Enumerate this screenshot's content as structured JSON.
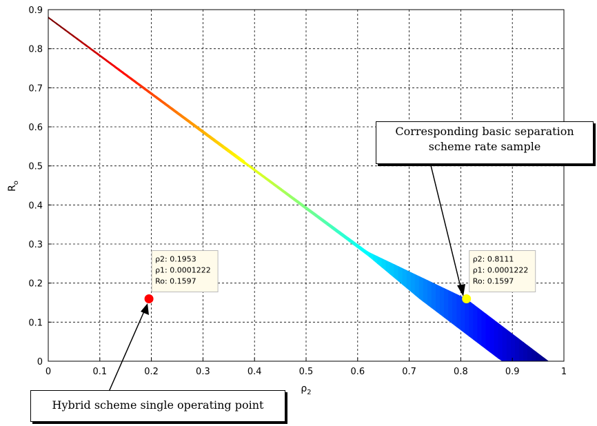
{
  "chart_data": {
    "type": "scatter",
    "xlabel": "ρ2",
    "ylabel": "Ro",
    "xlim": [
      0,
      1
    ],
    "ylim": [
      0,
      0.9
    ],
    "xticks": [
      "0",
      "0.1",
      "0.2",
      "0.3",
      "0.4",
      "0.5",
      "0.6",
      "0.7",
      "0.8",
      "0.9",
      "1"
    ],
    "yticks": [
      "0",
      "0.1",
      "0.2",
      "0.3",
      "0.4",
      "0.5",
      "0.6",
      "0.7",
      "0.8",
      "0.9"
    ],
    "grid": true,
    "region": {
      "description": "rate samples colored by ρ1",
      "upper_edge": [
        [
          0,
          0.88
        ],
        [
          0.62,
          0.28
        ],
        [
          0.81,
          0.16
        ],
        [
          0.97,
          0
        ]
      ],
      "lower_edge": [
        [
          0,
          0.88
        ],
        [
          0.62,
          0.27
        ],
        [
          0.72,
          0.16
        ],
        [
          0.88,
          0
        ]
      ],
      "colormap": "jet"
    },
    "points": [
      {
        "name": "hybrid",
        "x": 0.1953,
        "y": 0.1597,
        "color": "#ff0000"
      },
      {
        "name": "separation",
        "x": 0.8111,
        "y": 0.1597,
        "color": "#ffff00"
      }
    ],
    "datatips": [
      {
        "for": "hybrid",
        "l1": "ρ2: 0.1953",
        "l2": "ρ1: 0.0001222",
        "l3": "Ro: 0.1597"
      },
      {
        "for": "separation",
        "l1": "ρ2: 0.8111",
        "l2": "ρ1: 0.0001222",
        "l3": "Ro: 0.1597"
      }
    ]
  },
  "annotations": {
    "separation_callout_line1": "Corresponding basic separation",
    "separation_callout_line2": "scheme rate sample",
    "hybrid_callout": "Hybrid scheme single operating point"
  }
}
